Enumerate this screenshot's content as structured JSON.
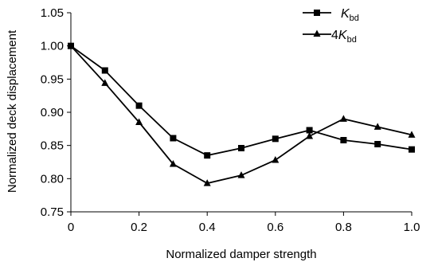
{
  "chart_data": {
    "type": "line",
    "title": "",
    "xlabel": "Normalized damper strength",
    "ylabel": "Normalized deck displacement",
    "xlim": [
      0,
      1.0
    ],
    "ylim": [
      0.75,
      1.05
    ],
    "x_ticks": [
      "0",
      "0.2",
      "0.4",
      "0.6",
      "0.8",
      "1.0"
    ],
    "y_ticks": [
      "0.75",
      "0.80",
      "0.85",
      "0.90",
      "0.95",
      "1.00",
      "1.05"
    ],
    "grid": false,
    "legend_position": "top-right",
    "x": [
      0,
      0.1,
      0.2,
      0.3,
      0.4,
      0.5,
      0.6,
      0.7,
      0.8,
      0.9,
      1.0
    ],
    "series": [
      {
        "name_prefix": "",
        "name_main": "K",
        "name_sub": "bd",
        "marker": "square",
        "values": [
          1.0,
          0.963,
          0.91,
          0.861,
          0.835,
          0.846,
          0.86,
          0.873,
          0.858,
          0.852,
          0.844
        ]
      },
      {
        "name_prefix": "4",
        "name_main": "K",
        "name_sub": "bd",
        "marker": "triangle",
        "values": [
          1.0,
          0.944,
          0.885,
          0.822,
          0.793,
          0.805,
          0.828,
          0.864,
          0.89,
          0.878,
          0.866
        ]
      }
    ],
    "colors": {
      "line": "#000000",
      "marker": "#000000"
    }
  }
}
